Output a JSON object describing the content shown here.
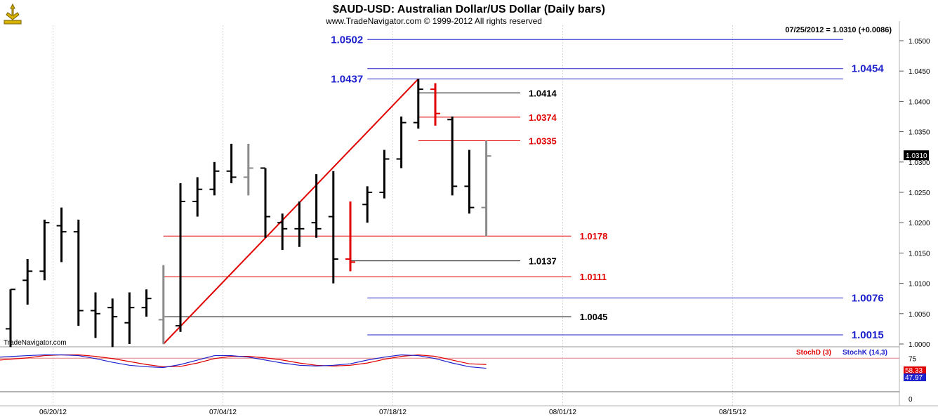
{
  "header": {
    "title": "$AUD-USD:  Australian Dollar/US Dollar  (Daily bars)",
    "subtitle": "www.TradeNavigator.com © 1999-2012 All rights reserved",
    "quote": "07/25/2012 = 1.0310 (+0.0086)",
    "watermark": "TradeNavigator.com"
  },
  "colors": {
    "bar_black": "#000000",
    "bar_gray": "#8a8a8a",
    "bar_red": "#e00000",
    "level_blue": "#1e22cc",
    "level_red": "#e00000",
    "level_black": "#000000",
    "grid": "#d8d8d8",
    "stoch_d": "#e00000",
    "stoch_k": "#1e22cc"
  },
  "chart_data": [
    {
      "type": "ohlc",
      "ylim": [
        0.999,
        1.0525
      ],
      "y_ticks": [
        "1.0500",
        "1.0450",
        "1.0400",
        "1.0350",
        "1.0300",
        "1.0250",
        "1.0200",
        "1.0150",
        "1.0100",
        "1.0050",
        "1.0000"
      ],
      "current_price_label": "1.0310",
      "x_labels": [
        {
          "label": "06/20/12",
          "bar": 2.5
        },
        {
          "label": "07/04/12",
          "bar": 12.5
        },
        {
          "label": "07/18/12",
          "bar": 22.5
        },
        {
          "label": "08/01/12",
          "bar": 32.5
        },
        {
          "label": "08/15/12",
          "bar": 42.5
        }
      ],
      "bars": [
        {
          "o": 1.0025,
          "h": 1.009,
          "l": 0.9995,
          "c": 1.009,
          "color": "black"
        },
        {
          "o": 1.0105,
          "h": 1.014,
          "l": 1.0065,
          "c": 1.012,
          "color": "black"
        },
        {
          "o": 1.012,
          "h": 1.0205,
          "l": 1.0105,
          "c": 1.02,
          "color": "black"
        },
        {
          "o": 1.0195,
          "h": 1.0225,
          "l": 1.0135,
          "c": 1.0185,
          "color": "black"
        },
        {
          "o": 1.0185,
          "h": 1.0205,
          "l": 1.003,
          "c": 1.0055,
          "color": "black"
        },
        {
          "o": 1.0055,
          "h": 1.0085,
          "l": 1.001,
          "c": 1.005,
          "color": "black"
        },
        {
          "o": 1.006,
          "h": 1.0075,
          "l": 0.9995,
          "c": 1.0045,
          "color": "black"
        },
        {
          "o": 1.0035,
          "h": 1.0085,
          "l": 1.0,
          "c": 1.006,
          "color": "black"
        },
        {
          "o": 1.006,
          "h": 1.009,
          "l": 1.0045,
          "c": 1.0075,
          "color": "black"
        },
        {
          "o": 1.004,
          "h": 1.013,
          "l": 1.0,
          "c": 1.0045,
          "color": "gray"
        },
        {
          "o": 1.003,
          "h": 1.0265,
          "l": 1.002,
          "c": 1.0235,
          "color": "black"
        },
        {
          "o": 1.0235,
          "h": 1.0275,
          "l": 1.021,
          "c": 1.0255,
          "color": "black"
        },
        {
          "o": 1.0255,
          "h": 1.03,
          "l": 1.0245,
          "c": 1.0285,
          "color": "black"
        },
        {
          "o": 1.0285,
          "h": 1.033,
          "l": 1.0265,
          "c": 1.0275,
          "color": "black"
        },
        {
          "o": 1.0275,
          "h": 1.033,
          "l": 1.0245,
          "c": 1.029,
          "color": "gray"
        },
        {
          "o": 1.029,
          "h": 1.029,
          "l": 1.0175,
          "c": 1.021,
          "color": "black"
        },
        {
          "o": 1.02,
          "h": 1.0215,
          "l": 1.0155,
          "c": 1.019,
          "color": "black"
        },
        {
          "o": 1.019,
          "h": 1.0235,
          "l": 1.016,
          "c": 1.019,
          "color": "black"
        },
        {
          "o": 1.02,
          "h": 1.028,
          "l": 1.0175,
          "c": 1.019,
          "color": "black"
        },
        {
          "o": 1.021,
          "h": 1.0285,
          "l": 1.01,
          "c": 1.014,
          "color": "black"
        },
        {
          "o": 1.014,
          "h": 1.0235,
          "l": 1.012,
          "c": 1.0135,
          "color": "red"
        },
        {
          "o": 1.023,
          "h": 1.026,
          "l": 1.02,
          "c": 1.025,
          "color": "black"
        },
        {
          "o": 1.025,
          "h": 1.032,
          "l": 1.024,
          "c": 1.0305,
          "color": "black"
        },
        {
          "o": 1.0305,
          "h": 1.0375,
          "l": 1.029,
          "c": 1.0365,
          "color": "black"
        },
        {
          "o": 1.0365,
          "h": 1.0437,
          "l": 1.0355,
          "c": 1.042,
          "color": "black"
        },
        {
          "o": 1.042,
          "h": 1.043,
          "l": 1.036,
          "c": 1.038,
          "color": "red"
        },
        {
          "o": 1.037,
          "h": 1.0375,
          "l": 1.0245,
          "c": 1.026,
          "color": "black"
        },
        {
          "o": 1.026,
          "h": 1.032,
          "l": 1.0215,
          "c": 1.0225,
          "color": "black"
        },
        {
          "o": 1.0225,
          "h": 1.0335,
          "l": 1.0178,
          "c": 1.031,
          "color": "gray"
        }
      ],
      "trend_lines": [
        {
          "from_bar": 9,
          "from_price": 1.0,
          "to_bar": 24,
          "to_price": 1.0437,
          "color": "red"
        }
      ],
      "levels": [
        {
          "label": "1.0502",
          "price": 1.0502,
          "from_bar": 21,
          "to_bar": 49,
          "color": "blue",
          "label_side": "left"
        },
        {
          "label": "1.0454",
          "price": 1.0454,
          "from_bar": 21,
          "to_bar": 49,
          "color": "blue",
          "label_side": "right"
        },
        {
          "label": "1.0437",
          "price": 1.0437,
          "from_bar": 21,
          "to_bar": 49,
          "color": "blue",
          "label_side": "left"
        },
        {
          "label": "1.0414",
          "price": 1.0414,
          "from_bar": 24,
          "to_bar": 30,
          "color": "black",
          "label_side": "right"
        },
        {
          "label": "1.0374",
          "price": 1.0374,
          "from_bar": 24,
          "to_bar": 30,
          "color": "red",
          "label_side": "right"
        },
        {
          "label": "1.0335",
          "price": 1.0335,
          "from_bar": 24,
          "to_bar": 30,
          "color": "red",
          "label_side": "right"
        },
        {
          "label": "1.0178",
          "price": 1.0178,
          "from_bar": 9,
          "to_bar": 33,
          "color": "red",
          "label_side": "right"
        },
        {
          "label": "1.0137",
          "price": 1.0137,
          "from_bar": 20,
          "to_bar": 30,
          "color": "black",
          "label_side": "right"
        },
        {
          "label": "1.0111",
          "price": 1.0111,
          "from_bar": 9,
          "to_bar": 33,
          "color": "red",
          "label_side": "right"
        },
        {
          "label": "1.0076",
          "price": 1.0076,
          "from_bar": 21,
          "to_bar": 49,
          "color": "blue",
          "label_side": "right"
        },
        {
          "label": "1.0045",
          "price": 1.0045,
          "from_bar": 9,
          "to_bar": 33,
          "color": "black",
          "label_side": "right"
        },
        {
          "label": "1.0015",
          "price": 1.0015,
          "from_bar": 21,
          "to_bar": 49,
          "color": "blue",
          "label_side": "right"
        }
      ]
    },
    {
      "type": "line",
      "ylim": [
        0,
        100
      ],
      "y_ticks": [
        "75",
        "0"
      ],
      "reference_lines": [
        75
      ],
      "series": [
        {
          "name": "StochD (3)",
          "color": "red",
          "last_label": "58.33",
          "values": [
            70,
            76,
            82,
            84,
            84,
            80,
            74,
            66,
            58,
            52,
            53,
            62,
            74,
            80,
            80,
            76,
            70,
            62,
            56,
            54,
            56,
            62,
            72,
            80,
            84,
            80,
            70,
            60,
            58
          ]
        },
        {
          "name": "StochK (14,3)",
          "color": "blue",
          "last_label": "47.97",
          "values": [
            78,
            82,
            84,
            84,
            82,
            74,
            64,
            56,
            52,
            50,
            58,
            70,
            82,
            82,
            78,
            70,
            62,
            56,
            54,
            56,
            60,
            70,
            78,
            84,
            82,
            74,
            62,
            52,
            48
          ]
        }
      ]
    }
  ]
}
